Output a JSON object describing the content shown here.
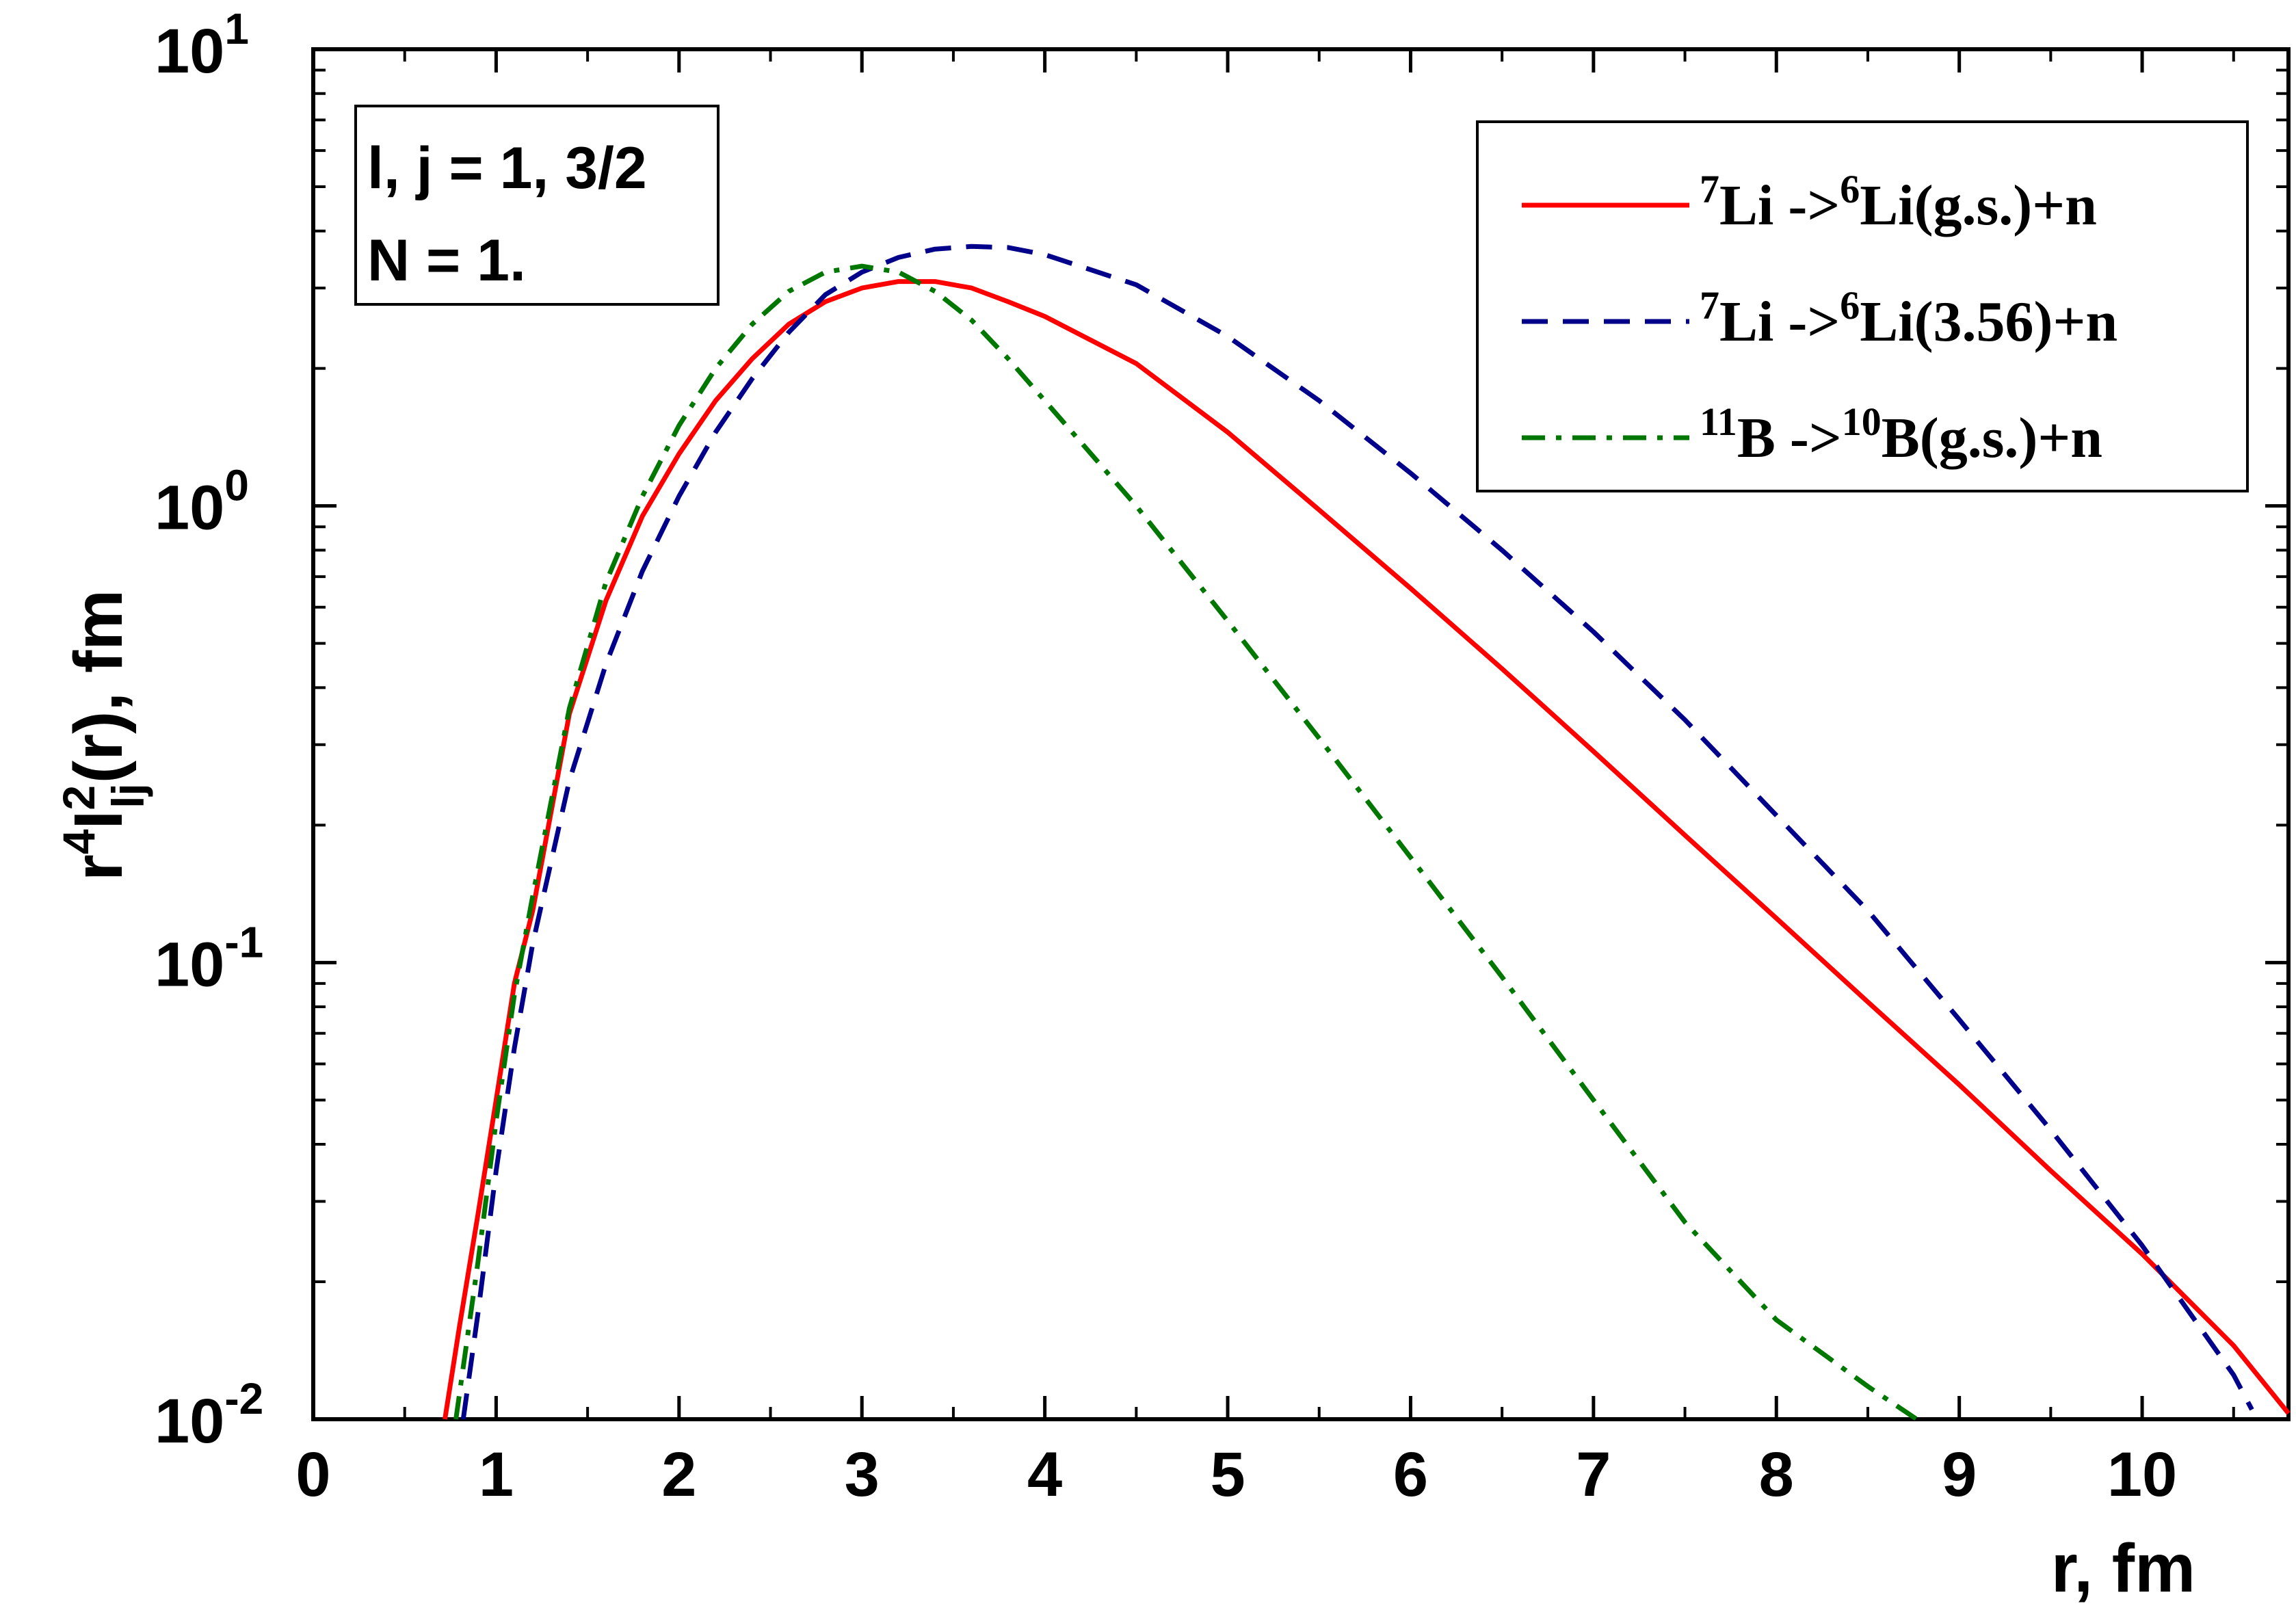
{
  "chart_data": {
    "type": "line",
    "xlabel": "r, fm",
    "ylabel": {
      "base": "r",
      "sup1": "4",
      "mid": "I",
      "sup2": "2",
      "sub": "lj",
      "tail": "(r), fm"
    },
    "xlim": [
      0,
      10.8
    ],
    "ylim": [
      0.01,
      10
    ],
    "y_scale": "log",
    "x_ticks": [
      "0",
      "1",
      "2",
      "3",
      "4",
      "5",
      "6",
      "7",
      "8",
      "9",
      "10"
    ],
    "y_ticks": [
      {
        "base": "10",
        "exp": "-2",
        "value": 0.01
      },
      {
        "base": "10",
        "exp": "-1",
        "value": 0.1
      },
      {
        "base": "10",
        "exp": "0",
        "value": 1
      },
      {
        "base": "10",
        "exp": "1",
        "value": 10
      }
    ],
    "grid": false,
    "legend_position": "top-right",
    "info_box": {
      "line1": "l, j = 1, 3/2",
      "line2": "N = 1."
    },
    "series": [
      {
        "label": {
          "sup_a": "7",
          "a": "Li ->",
          "sup_b": "6",
          "b": "Li(g.s.)+n"
        },
        "color": "#ff0000",
        "style": "solid",
        "x": [
          0.72,
          0.8,
          0.9,
          1.0,
          1.1,
          1.2,
          1.4,
          1.6,
          1.8,
          2.0,
          2.2,
          2.4,
          2.6,
          2.8,
          3.0,
          3.2,
          3.4,
          3.6,
          3.8,
          4.0,
          4.5,
          5.0,
          5.5,
          6.0,
          6.5,
          7.0,
          7.5,
          8.0,
          8.5,
          9.0,
          9.5,
          10.0,
          10.5,
          10.8
        ],
        "y": [
          0.01,
          0.016,
          0.028,
          0.05,
          0.09,
          0.13,
          0.35,
          0.62,
          0.95,
          1.3,
          1.7,
          2.1,
          2.5,
          2.8,
          3.0,
          3.1,
          3.1,
          3.0,
          2.8,
          2.6,
          2.05,
          1.45,
          0.98,
          0.66,
          0.44,
          0.29,
          0.19,
          0.125,
          0.082,
          0.054,
          0.035,
          0.023,
          0.0145,
          0.0103
        ]
      },
      {
        "label": {
          "sup_a": "7",
          "a": "Li ->",
          "sup_b": "6",
          "b": "Li(3.56)+n"
        },
        "color": "#00008b",
        "style": "dashed",
        "x": [
          0.82,
          0.9,
          1.0,
          1.1,
          1.2,
          1.4,
          1.6,
          1.8,
          2.0,
          2.2,
          2.4,
          2.6,
          2.8,
          3.0,
          3.2,
          3.4,
          3.6,
          3.8,
          4.0,
          4.5,
          5.0,
          5.5,
          6.0,
          6.5,
          7.0,
          7.5,
          8.0,
          8.5,
          9.0,
          9.5,
          10.0,
          10.5,
          10.6
        ],
        "y": [
          0.01,
          0.017,
          0.035,
          0.065,
          0.11,
          0.25,
          0.45,
          0.72,
          1.05,
          1.45,
          1.9,
          2.4,
          2.9,
          3.25,
          3.5,
          3.65,
          3.7,
          3.68,
          3.55,
          3.05,
          2.35,
          1.7,
          1.18,
          0.8,
          0.53,
          0.34,
          0.21,
          0.13,
          0.075,
          0.043,
          0.024,
          0.0125,
          0.0105
        ]
      },
      {
        "label": {
          "sup_a": "11",
          "a": "B ->",
          "sup_b": "10",
          "b": "B(g.s.)+n"
        },
        "color": "#007700",
        "style": "dashdot",
        "x": [
          0.78,
          0.9,
          1.0,
          1.1,
          1.2,
          1.4,
          1.6,
          1.8,
          2.0,
          2.2,
          2.4,
          2.6,
          2.8,
          3.0,
          3.2,
          3.4,
          3.6,
          3.8,
          4.0,
          4.5,
          5.0,
          5.5,
          6.0,
          6.5,
          7.0,
          7.5,
          8.0,
          8.5,
          8.8
        ],
        "y": [
          0.01,
          0.022,
          0.045,
          0.085,
          0.14,
          0.36,
          0.68,
          1.05,
          1.5,
          2.0,
          2.5,
          2.95,
          3.25,
          3.35,
          3.25,
          2.95,
          2.55,
          2.1,
          1.7,
          1.0,
          0.56,
          0.31,
          0.17,
          0.093,
          0.05,
          0.027,
          0.0165,
          0.0118,
          0.0098
        ]
      }
    ]
  }
}
